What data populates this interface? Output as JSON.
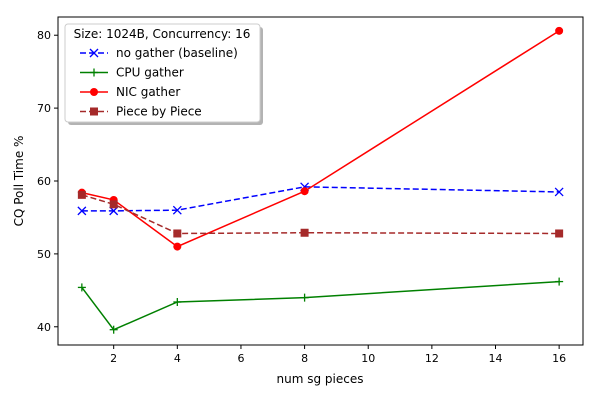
{
  "chart_data": {
    "type": "line",
    "xlabel": "num sg pieces",
    "ylabel": "CQ Poll Time %",
    "xlim": [
      0.25,
      16.75
    ],
    "ylim": [
      37.5,
      82.5
    ],
    "xticks": [
      2,
      4,
      6,
      8,
      10,
      12,
      14,
      16
    ],
    "yticks": [
      40,
      50,
      60,
      70,
      80
    ],
    "grid": false,
    "legend": {
      "title": "Size: 1024B, Concurrency: 16",
      "position": "top-left"
    },
    "x": [
      1,
      2,
      4,
      8,
      16
    ],
    "series": [
      {
        "name": "no gather (baseline)",
        "values": [
          55.9,
          55.9,
          56.0,
          59.2,
          58.5
        ],
        "color": "#0000ff",
        "linestyle": "dashed",
        "marker": "x"
      },
      {
        "name": "CPU gather",
        "values": [
          45.4,
          39.6,
          43.4,
          44.0,
          46.2
        ],
        "color": "#008000",
        "linestyle": "solid",
        "marker": "plus"
      },
      {
        "name": "NIC gather",
        "values": [
          58.4,
          57.4,
          51.0,
          58.6,
          80.6
        ],
        "color": "#ff0000",
        "linestyle": "solid",
        "marker": "circle"
      },
      {
        "name": "Piece by Piece",
        "values": [
          58.1,
          56.8,
          52.8,
          52.9,
          52.8
        ],
        "color": "#a52a2a",
        "linestyle": "dashed",
        "marker": "square"
      }
    ]
  }
}
